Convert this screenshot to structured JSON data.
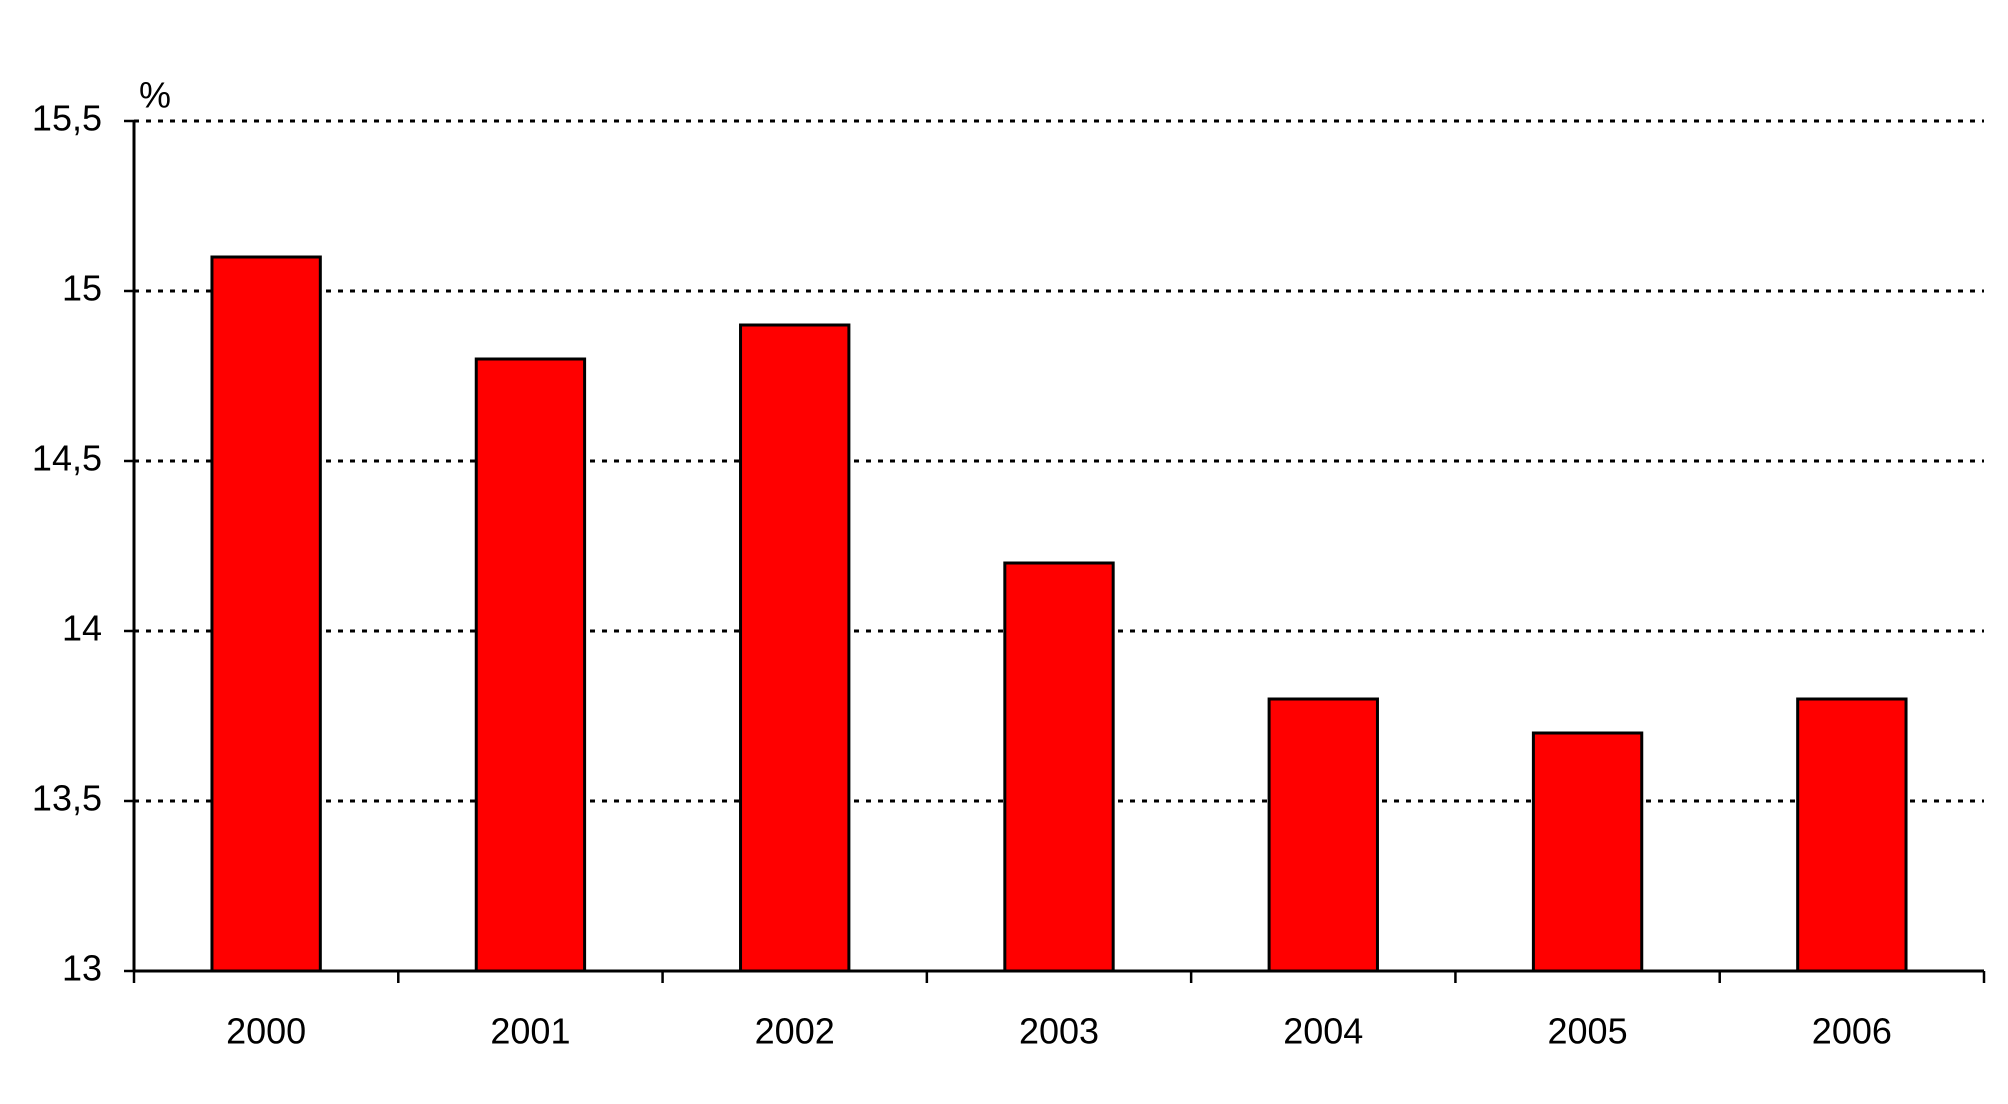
{
  "chart_data": {
    "type": "bar",
    "y_axis_label": "%",
    "categories": [
      "2000",
      "2001",
      "2002",
      "2003",
      "2004",
      "2005",
      "2006"
    ],
    "values": [
      15.1,
      14.8,
      14.9,
      14.2,
      13.8,
      13.7,
      13.8
    ],
    "color": "#ff0000",
    "ylim": [
      13,
      15.5
    ],
    "yticks": [
      13,
      {
        "value": 13.5,
        "label": "13,5"
      },
      14,
      {
        "value": 14.5,
        "label": "14,5"
      },
      15,
      {
        "value": 15.5,
        "label": "15,5"
      }
    ],
    "grid": true
  }
}
